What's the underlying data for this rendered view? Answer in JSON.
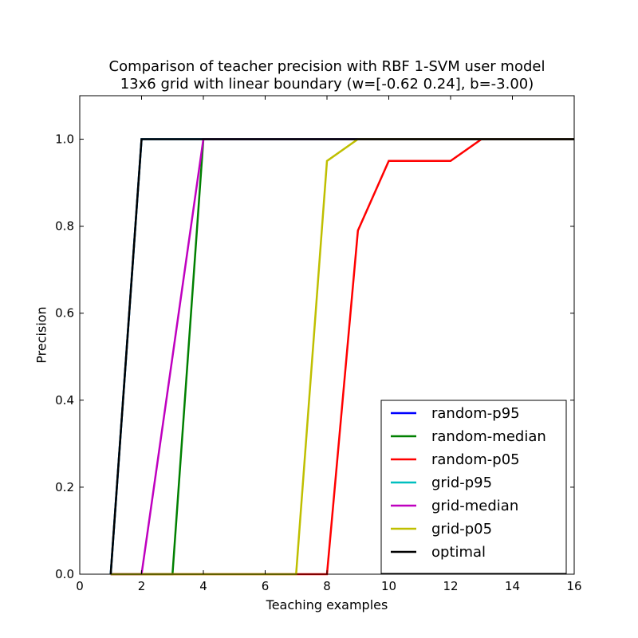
{
  "chart_data": {
    "type": "line",
    "title": "Comparison of teacher precision with RBF 1-SVM user model",
    "subtitle": "13x6 grid with linear boundary (w=[-0.62  0.24], b=-3.00)",
    "xlabel": "Teaching examples",
    "ylabel": "Precision",
    "xlim": [
      0,
      16
    ],
    "ylim": [
      0,
      1.1
    ],
    "xticks": [
      0,
      2,
      4,
      6,
      8,
      10,
      12,
      14,
      16
    ],
    "yticks": [
      0.0,
      0.2,
      0.4,
      0.6,
      0.8,
      1.0
    ],
    "xtick_labels": [
      "0",
      "2",
      "4",
      "6",
      "8",
      "10",
      "12",
      "14",
      "16"
    ],
    "ytick_labels": [
      "0.0",
      "0.2",
      "0.4",
      "0.6",
      "0.8",
      "1.0"
    ],
    "grid": false,
    "legend_position": "lower-right",
    "x": [
      1,
      2,
      3,
      4,
      5,
      6,
      7,
      8,
      9,
      10,
      11,
      12,
      13,
      14,
      15,
      16
    ],
    "series": [
      {
        "name": "random-p95",
        "color": "#0000ff",
        "values": [
          0,
          1,
          1,
          1,
          1,
          1,
          1,
          1,
          1,
          1,
          1,
          1,
          1,
          1,
          1,
          1
        ]
      },
      {
        "name": "random-median",
        "color": "#008000",
        "values": [
          0,
          0,
          0,
          1,
          1,
          1,
          1,
          1,
          1,
          1,
          1,
          1,
          1,
          1,
          1,
          1
        ]
      },
      {
        "name": "random-p05",
        "color": "#ff0000",
        "values": [
          0,
          0,
          0,
          0,
          0,
          0,
          0,
          0,
          0.79,
          0.95,
          0.95,
          0.95,
          1,
          1,
          1,
          1
        ]
      },
      {
        "name": "grid-p95",
        "color": "#00bfbf",
        "values": [
          0,
          1,
          1,
          1,
          1,
          1,
          1,
          1,
          1,
          1,
          1,
          1,
          1,
          1,
          1,
          1
        ]
      },
      {
        "name": "grid-median",
        "color": "#bf00bf",
        "values": [
          0,
          0,
          0.5,
          1,
          1,
          1,
          1,
          1,
          1,
          1,
          1,
          1,
          1,
          1,
          1,
          1
        ]
      },
      {
        "name": "grid-p05",
        "color": "#bfbf00",
        "values": [
          0,
          0,
          0,
          0,
          0,
          0,
          0,
          0.95,
          1,
          1,
          1,
          1,
          1,
          1,
          1,
          1
        ]
      },
      {
        "name": "optimal",
        "color": "#000000",
        "values": [
          0,
          1,
          1,
          1,
          1,
          1,
          1,
          1,
          1,
          1,
          1,
          1,
          1,
          1,
          1,
          1
        ]
      }
    ]
  }
}
